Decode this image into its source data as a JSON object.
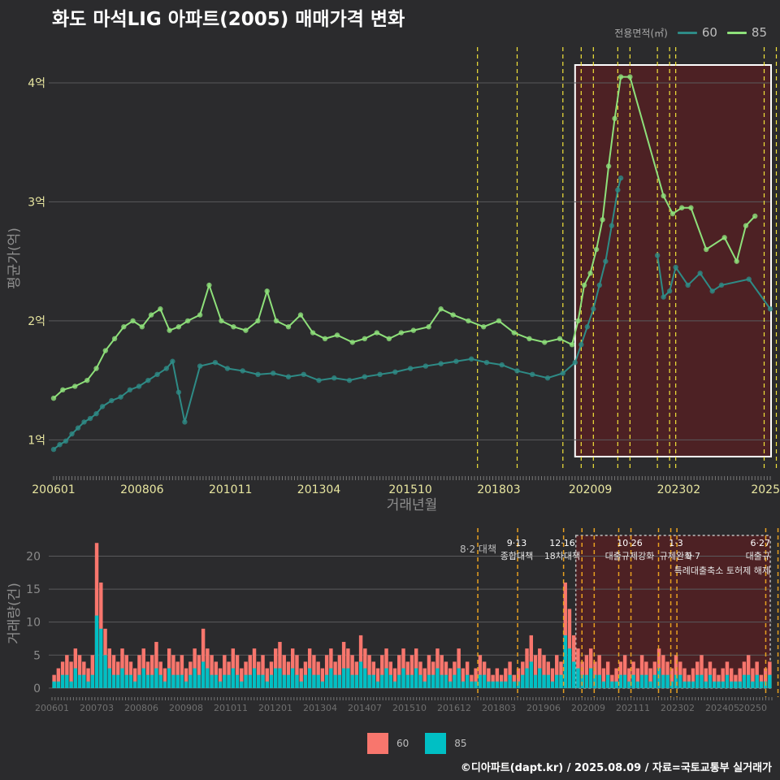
{
  "title": "화도 마석LIG 아파트(2005) 매매가격 변화",
  "caption": "©디아파트(dapt.kr) / 2025.08.09 / 자료=국토교통부 실거래가",
  "colors": {
    "bg": "#2b2b2d",
    "grid": "#5a5a5c",
    "line60": "#2e8b86",
    "line85": "#8ee07a",
    "bar60": "#f8766d",
    "bar85": "#00bfc4",
    "shade": "#5a1f22",
    "policy": "#f2e33a",
    "policy_bottom": "#e8a020"
  },
  "chart_data": [
    {
      "type": "line",
      "name": "price-chart",
      "xlabel": "거래년월",
      "ylabel": "평균가(억)",
      "x_ticks": [
        "200601",
        "200806",
        "201011",
        "201304",
        "201510",
        "201803",
        "202009",
        "202302",
        "2025"
      ],
      "y_ticks": [
        "1억",
        "2억",
        "3억",
        "4억"
      ],
      "y_tick_values": [
        1,
        2,
        3,
        4
      ],
      "ylim": [
        0.75,
        4.3
      ],
      "xlim": [
        "2006-01",
        "2025-08"
      ],
      "legend": {
        "title": "전용면적(㎡)",
        "entries": [
          "60",
          "85"
        ],
        "position": "top-right"
      },
      "highlight_box": {
        "from": "2020-04",
        "to": "2025-08"
      },
      "policy_lines": [
        "2017-08",
        "2018-09",
        "2019-12",
        "2020-06",
        "2020-10",
        "2021-06",
        "2021-10",
        "2022-07",
        "2022-11",
        "2023-01",
        "2025-06",
        "2025-10"
      ],
      "series": [
        {
          "name": "60",
          "points": [
            [
              "2006-01",
              0.92
            ],
            [
              "2006-03",
              0.96
            ],
            [
              "2006-05",
              0.99
            ],
            [
              "2006-07",
              1.05
            ],
            [
              "2006-09",
              1.1
            ],
            [
              "2006-11",
              1.15
            ],
            [
              "2007-01",
              1.18
            ],
            [
              "2007-03",
              1.22
            ],
            [
              "2007-05",
              1.28
            ],
            [
              "2007-08",
              1.33
            ],
            [
              "2007-11",
              1.36
            ],
            [
              "2008-02",
              1.42
            ],
            [
              "2008-05",
              1.45
            ],
            [
              "2008-08",
              1.5
            ],
            [
              "2008-11",
              1.55
            ],
            [
              "2009-02",
              1.6
            ],
            [
              "2009-04",
              1.66
            ],
            [
              "2009-06",
              1.4
            ],
            [
              "2009-08",
              1.15
            ],
            [
              "2010-01",
              1.62
            ],
            [
              "2010-06",
              1.65
            ],
            [
              "2010-10",
              1.6
            ],
            [
              "2011-03",
              1.58
            ],
            [
              "2011-08",
              1.55
            ],
            [
              "2012-01",
              1.56
            ],
            [
              "2012-06",
              1.53
            ],
            [
              "2012-11",
              1.55
            ],
            [
              "2013-04",
              1.5
            ],
            [
              "2013-09",
              1.52
            ],
            [
              "2014-02",
              1.5
            ],
            [
              "2014-07",
              1.53
            ],
            [
              "2014-12",
              1.55
            ],
            [
              "2015-05",
              1.57
            ],
            [
              "2015-10",
              1.6
            ],
            [
              "2016-03",
              1.62
            ],
            [
              "2016-08",
              1.64
            ],
            [
              "2017-01",
              1.66
            ],
            [
              "2017-06",
              1.68
            ],
            [
              "2017-11",
              1.65
            ],
            [
              "2018-04",
              1.63
            ],
            [
              "2018-09",
              1.58
            ],
            [
              "2019-02",
              1.55
            ],
            [
              "2019-07",
              1.52
            ],
            [
              "2019-12",
              1.56
            ],
            [
              "2020-04",
              1.65
            ],
            [
              "2020-06",
              1.8
            ],
            [
              "2020-08",
              1.95
            ],
            [
              "2020-10",
              2.1
            ],
            [
              "2020-12",
              2.3
            ],
            [
              "2021-02",
              2.5
            ],
            [
              "2021-04",
              2.8
            ],
            [
              "2021-06",
              3.1
            ],
            [
              "2021-07",
              3.2
            ],
            [
              "2022-07",
              2.55
            ],
            [
              "2022-09",
              2.2
            ],
            [
              "2022-11",
              2.25
            ],
            [
              "2023-01",
              2.45
            ],
            [
              "2023-05",
              2.3
            ],
            [
              "2023-09",
              2.4
            ],
            [
              "2024-01",
              2.25
            ],
            [
              "2024-04",
              2.3
            ],
            [
              "2025-01",
              2.35
            ],
            [
              "2025-08",
              2.1
            ]
          ]
        },
        {
          "name": "85",
          "points": [
            [
              "2006-01",
              1.35
            ],
            [
              "2006-04",
              1.42
            ],
            [
              "2006-08",
              1.45
            ],
            [
              "2006-12",
              1.5
            ],
            [
              "2007-03",
              1.6
            ],
            [
              "2007-06",
              1.75
            ],
            [
              "2007-09",
              1.85
            ],
            [
              "2007-12",
              1.95
            ],
            [
              "2008-03",
              2.0
            ],
            [
              "2008-06",
              1.95
            ],
            [
              "2008-09",
              2.05
            ],
            [
              "2008-12",
              2.1
            ],
            [
              "2009-03",
              1.92
            ],
            [
              "2009-06",
              1.95
            ],
            [
              "2009-09",
              2.0
            ],
            [
              "2010-01",
              2.05
            ],
            [
              "2010-04",
              2.3
            ],
            [
              "2010-08",
              2.0
            ],
            [
              "2010-12",
              1.95
            ],
            [
              "2011-04",
              1.92
            ],
            [
              "2011-08",
              2.0
            ],
            [
              "2011-11",
              2.25
            ],
            [
              "2012-02",
              2.0
            ],
            [
              "2012-06",
              1.95
            ],
            [
              "2012-10",
              2.05
            ],
            [
              "2013-02",
              1.9
            ],
            [
              "2013-06",
              1.85
            ],
            [
              "2013-10",
              1.88
            ],
            [
              "2014-03",
              1.82
            ],
            [
              "2014-07",
              1.85
            ],
            [
              "2014-11",
              1.9
            ],
            [
              "2015-03",
              1.85
            ],
            [
              "2015-07",
              1.9
            ],
            [
              "2015-11",
              1.92
            ],
            [
              "2016-04",
              1.95
            ],
            [
              "2016-08",
              2.1
            ],
            [
              "2016-12",
              2.05
            ],
            [
              "2017-05",
              2.0
            ],
            [
              "2017-10",
              1.95
            ],
            [
              "2018-03",
              2.0
            ],
            [
              "2018-08",
              1.9
            ],
            [
              "2019-01",
              1.85
            ],
            [
              "2019-06",
              1.82
            ],
            [
              "2019-11",
              1.85
            ],
            [
              "2020-03",
              1.8
            ],
            [
              "2020-05",
              2.0
            ],
            [
              "2020-07",
              2.3
            ],
            [
              "2020-09",
              2.4
            ],
            [
              "2020-11",
              2.6
            ],
            [
              "2021-01",
              2.85
            ],
            [
              "2021-03",
              3.3
            ],
            [
              "2021-05",
              3.7
            ],
            [
              "2021-07",
              4.05
            ],
            [
              "2021-10",
              4.05
            ],
            [
              "2022-09",
              3.05
            ],
            [
              "2022-12",
              2.9
            ],
            [
              "2023-03",
              2.95
            ],
            [
              "2023-06",
              2.95
            ],
            [
              "2023-11",
              2.6
            ],
            [
              "2024-05",
              2.7
            ],
            [
              "2024-09",
              2.5
            ],
            [
              "2024-12",
              2.8
            ],
            [
              "2025-03",
              2.88
            ]
          ]
        }
      ]
    },
    {
      "type": "bar",
      "name": "volume-chart",
      "ylabel": "거래량(건)",
      "y_ticks": [
        "0",
        "5",
        "10",
        "15",
        "20"
      ],
      "y_tick_values": [
        0,
        5,
        10,
        15,
        20
      ],
      "ylim": [
        -1,
        24
      ],
      "x_ticks": [
        "200601",
        "200703",
        "200806",
        "200908",
        "201011",
        "201201",
        "201304",
        "201407",
        "201510",
        "201612",
        "201803",
        "201906",
        "202009",
        "202111",
        "202302",
        "202405",
        "20250"
      ],
      "series_names": [
        "60",
        "85"
      ],
      "series": [
        {
          "name": "60",
          "values": [
            2,
            3,
            4,
            5,
            4,
            6,
            5,
            4,
            3,
            5,
            22,
            16,
            9,
            6,
            5,
            4,
            6,
            5,
            4,
            3,
            5,
            6,
            4,
            5,
            7,
            4,
            3,
            6,
            5,
            4,
            5,
            3,
            4,
            6,
            5,
            9,
            6,
            5,
            4,
            3,
            5,
            4,
            6,
            5,
            3,
            4,
            5,
            6,
            4,
            5,
            3,
            4,
            6,
            7,
            5,
            4,
            6,
            5,
            3,
            4,
            6,
            5,
            4,
            3,
            5,
            6,
            4,
            5,
            7,
            6,
            5,
            4,
            8,
            6,
            5,
            4,
            3,
            5,
            6,
            4,
            3,
            5,
            6,
            4,
            5,
            6,
            4,
            3,
            5,
            4,
            6,
            5,
            4,
            3,
            4,
            6,
            3,
            4,
            2,
            3,
            5,
            4,
            3,
            2,
            3,
            2,
            3,
            4,
            2,
            3,
            4,
            6,
            8,
            5,
            6,
            5,
            4,
            3,
            5,
            4,
            16,
            12,
            8,
            6,
            4,
            5,
            6,
            4,
            5,
            3,
            4,
            2,
            3,
            4,
            5,
            3,
            4,
            3,
            5,
            4,
            3,
            4,
            6,
            5,
            4,
            3,
            5,
            4,
            3,
            2,
            3,
            4,
            5,
            3,
            4,
            3,
            2,
            3,
            4,
            3,
            2,
            3,
            4,
            5,
            3,
            4,
            2,
            3,
            4
          ]
        },
        {
          "name": "85",
          "values": [
            1,
            1,
            2,
            2,
            1,
            3,
            2,
            2,
            1,
            2,
            11,
            9,
            5,
            3,
            2,
            2,
            3,
            2,
            2,
            1,
            2,
            3,
            2,
            2,
            3,
            2,
            1,
            3,
            2,
            2,
            2,
            1,
            2,
            3,
            2,
            4,
            3,
            2,
            2,
            1,
            2,
            2,
            3,
            2,
            1,
            2,
            2,
            3,
            2,
            2,
            1,
            2,
            3,
            3,
            2,
            2,
            3,
            2,
            1,
            2,
            3,
            2,
            2,
            1,
            2,
            3,
            2,
            2,
            3,
            3,
            2,
            2,
            4,
            3,
            2,
            2,
            1,
            2,
            3,
            2,
            1,
            2,
            3,
            2,
            2,
            3,
            2,
            1,
            2,
            2,
            3,
            2,
            2,
            1,
            2,
            3,
            1,
            2,
            1,
            1,
            2,
            2,
            1,
            1,
            1,
            1,
            1,
            2,
            1,
            1,
            2,
            3,
            4,
            2,
            3,
            2,
            2,
            1,
            2,
            2,
            8,
            6,
            4,
            3,
            2,
            2,
            3,
            2,
            2,
            1,
            2,
            1,
            1,
            2,
            2,
            1,
            2,
            1,
            2,
            2,
            1,
            2,
            3,
            2,
            2,
            1,
            2,
            2,
            1,
            1,
            1,
            2,
            2,
            1,
            2,
            1,
            1,
            1,
            2,
            1,
            1,
            1,
            2,
            2,
            1,
            2,
            1,
            1,
            2
          ]
        }
      ],
      "policy_labels": [
        {
          "line1": "",
          "line2": "8·2 대책",
          "at": "2017-08"
        },
        {
          "line1": "9·13",
          "line2": "종합대책",
          "at": "2018-09"
        },
        {
          "line1": "12·16",
          "line2": "18차대책",
          "at": "2019-12"
        },
        {
          "line1": "10·26",
          "line2": "대출규제강화",
          "at": "2021-10"
        },
        {
          "line1": "1·3",
          "line2": "규제완화",
          "at": "2023-01"
        },
        {
          "line1": "",
          "line2": "9·7",
          "at": "2023-09"
        },
        {
          "line1": "",
          "line2": "특례대출축소 토허제 해제",
          "at": "2024-03"
        },
        {
          "line1": "6·27",
          "line2": "대출규",
          "at": "2025-06"
        }
      ]
    }
  ],
  "legend_bottom": {
    "entries": [
      "60",
      "85"
    ]
  }
}
